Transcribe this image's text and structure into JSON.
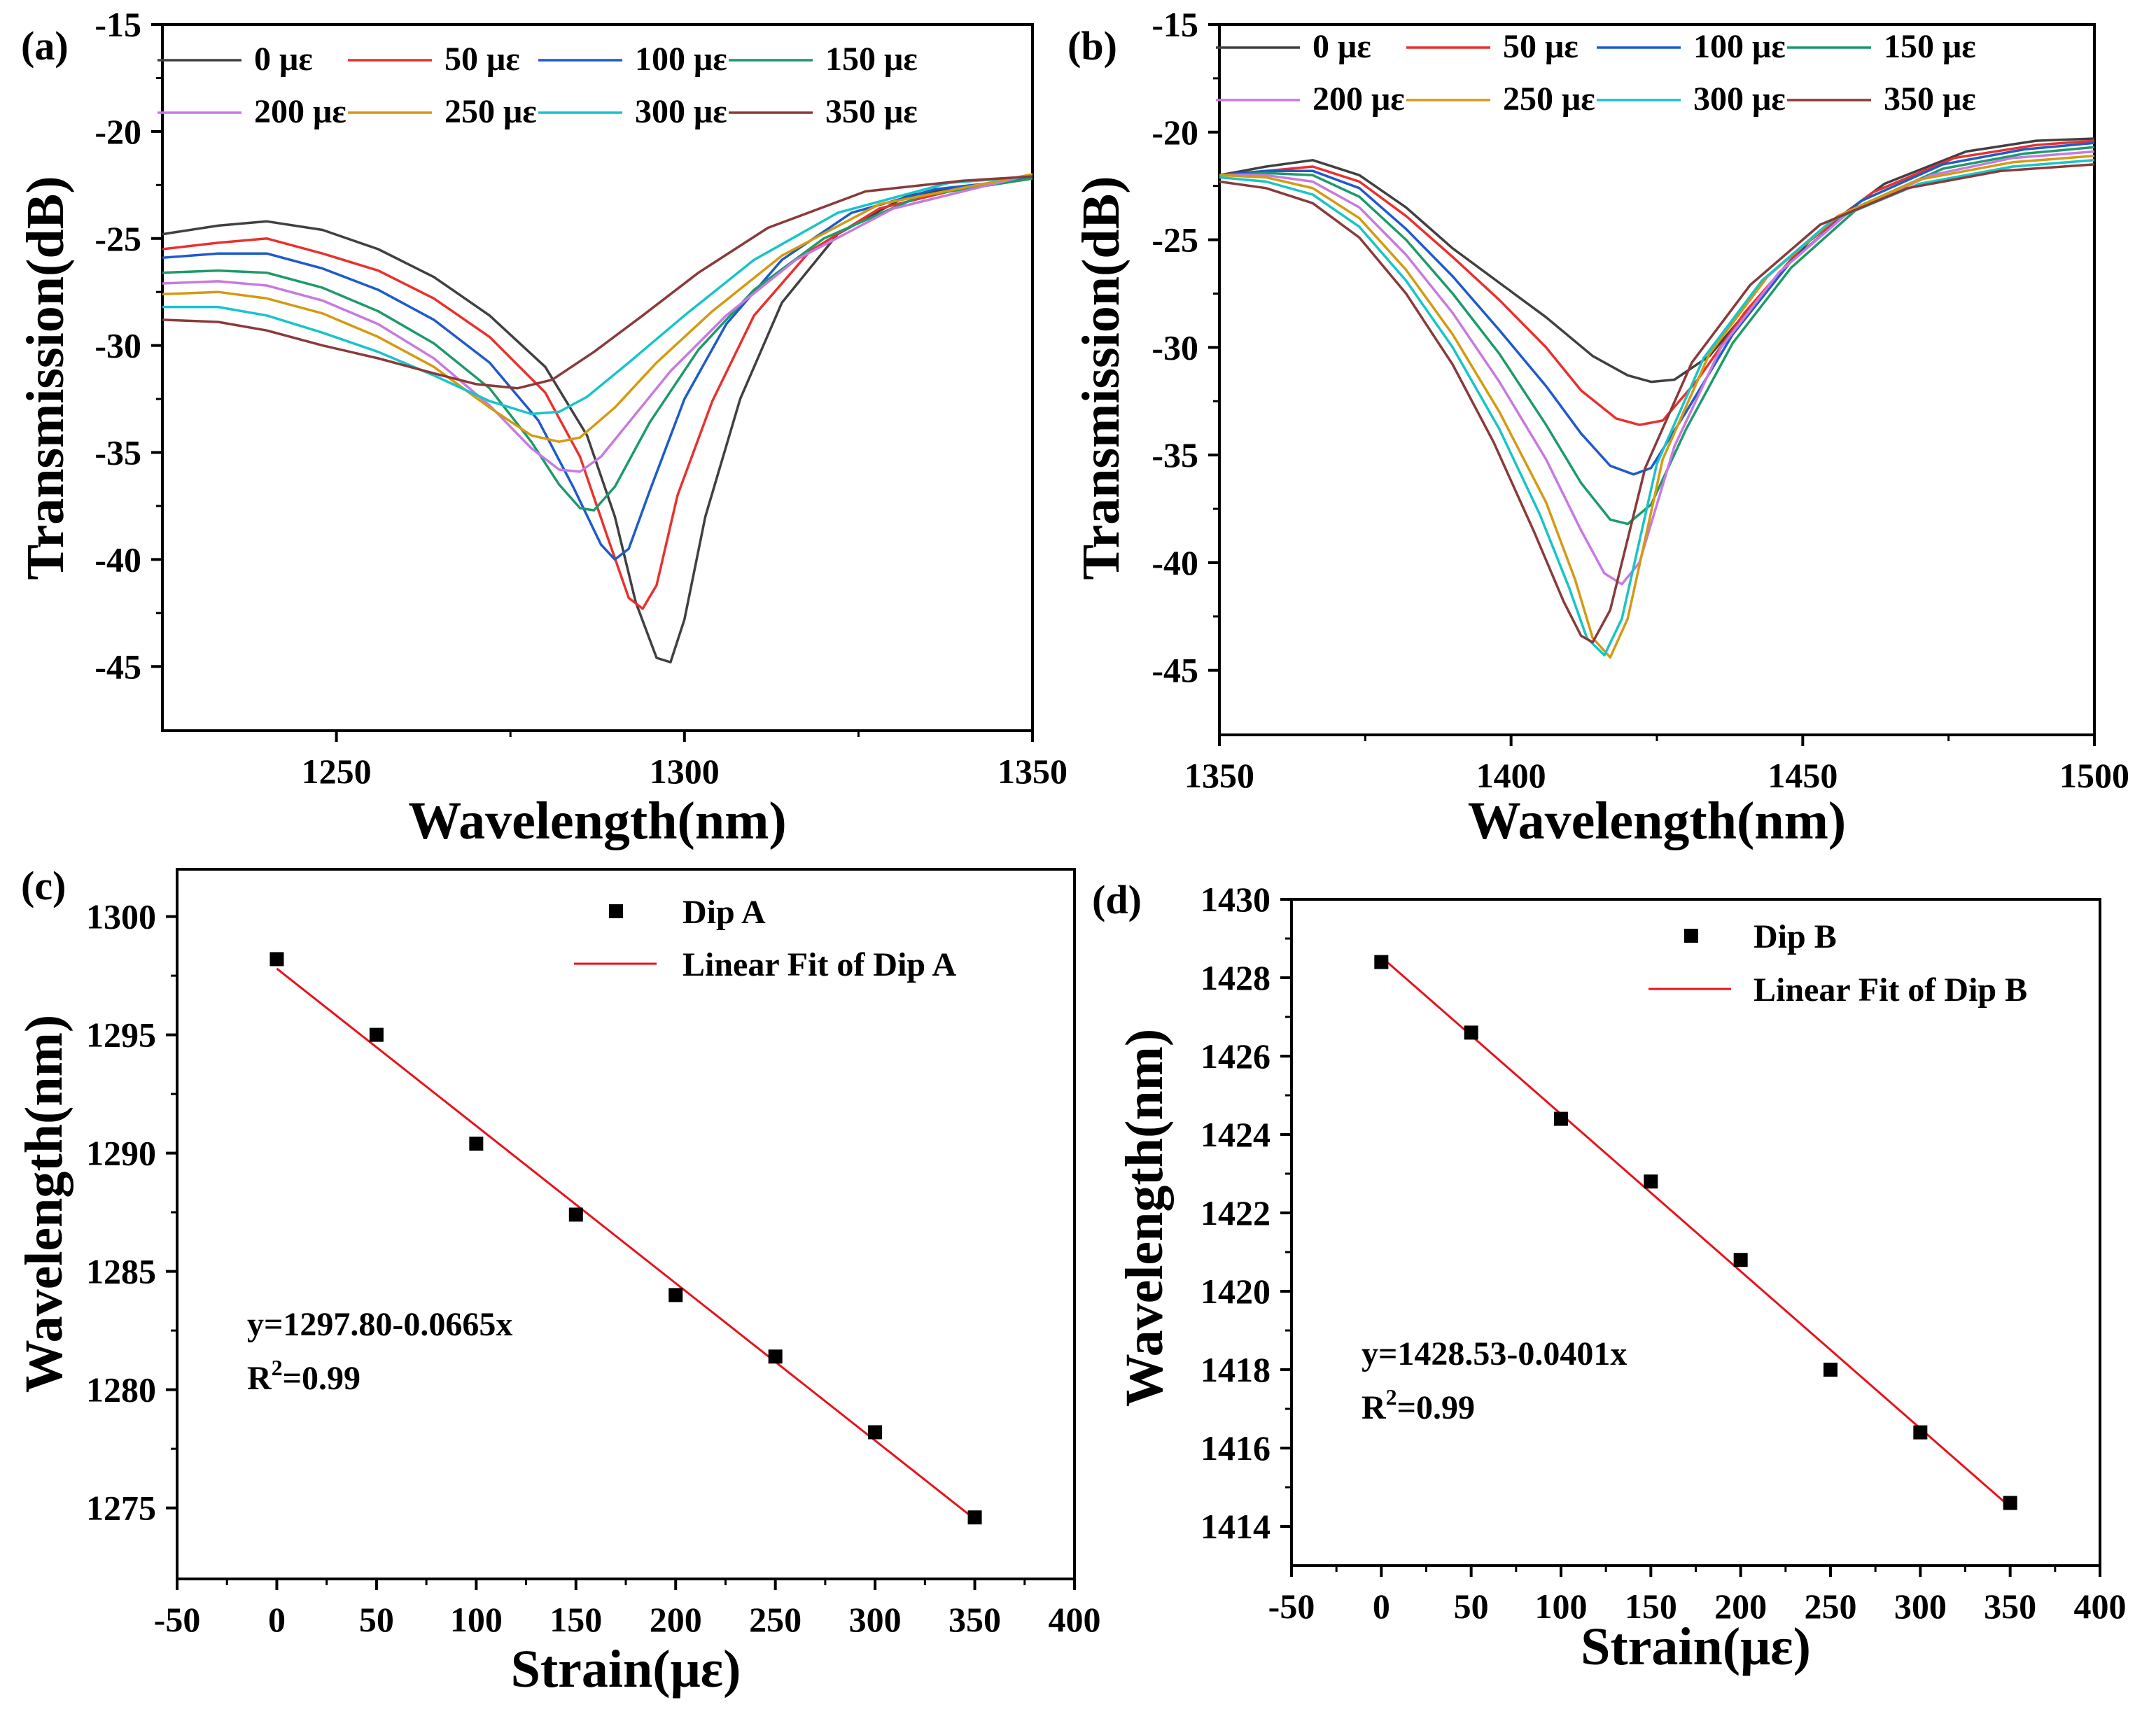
{
  "chart_data": [
    {
      "panel": "(a)",
      "type": "line",
      "xlabel": "Wavelength(nm)",
      "ylabel": "Transmission(dB)",
      "xlim": [
        1225,
        1350
      ],
      "ylim": [
        -48,
        -15
      ],
      "xticks": [
        "1250",
        "1300",
        "1350"
      ],
      "yticks": [
        "-15",
        "-20",
        "-25",
        "-30",
        "-35",
        "-40",
        "-45"
      ],
      "legend": {
        "location": "top",
        "columns": 4
      },
      "series": [
        {
          "name": "0 με",
          "color": "#404040",
          "x": [
            1225,
            1233,
            1240,
            1248,
            1256,
            1264,
            1272,
            1280,
            1286,
            1290,
            1293,
            1296,
            1298,
            1300,
            1303,
            1308,
            1314,
            1322,
            1332,
            1342,
            1350
          ],
          "y": [
            -24.8,
            -24.4,
            -24.2,
            -24.6,
            -25.5,
            -26.8,
            -28.6,
            -31.0,
            -34.2,
            -38.0,
            -42.0,
            -44.6,
            -44.8,
            -42.8,
            -38.0,
            -32.5,
            -28.0,
            -24.8,
            -23.0,
            -22.5,
            -22.2
          ]
        },
        {
          "name": "50 με",
          "color": "#e8312e",
          "x": [
            1225,
            1233,
            1240,
            1248,
            1256,
            1264,
            1272,
            1280,
            1285,
            1289,
            1292,
            1294,
            1296,
            1299,
            1304,
            1310,
            1318,
            1328,
            1338,
            1350
          ],
          "y": [
            -25.5,
            -25.2,
            -25.0,
            -25.7,
            -26.5,
            -27.8,
            -29.6,
            -32.2,
            -35.2,
            -39.0,
            -41.8,
            -42.3,
            -41.2,
            -37.0,
            -32.6,
            -28.6,
            -25.6,
            -23.6,
            -22.8,
            -22.2
          ]
        },
        {
          "name": "100 με",
          "color": "#1f5bc9",
          "x": [
            1225,
            1233,
            1240,
            1248,
            1256,
            1264,
            1272,
            1279,
            1284,
            1288,
            1290,
            1292,
            1295,
            1300,
            1306,
            1314,
            1324,
            1336,
            1350
          ],
          "y": [
            -25.9,
            -25.7,
            -25.7,
            -26.4,
            -27.4,
            -28.8,
            -30.8,
            -33.5,
            -36.6,
            -39.3,
            -40.0,
            -39.5,
            -36.8,
            -32.5,
            -29.0,
            -26.0,
            -23.8,
            -22.7,
            -22.2
          ]
        },
        {
          "name": "150 με",
          "color": "#1e9a6a",
          "x": [
            1225,
            1233,
            1240,
            1248,
            1256,
            1264,
            1272,
            1278,
            1282,
            1285,
            1287,
            1290,
            1295,
            1302,
            1310,
            1320,
            1334,
            1350
          ],
          "y": [
            -26.6,
            -26.5,
            -26.6,
            -27.3,
            -28.4,
            -29.9,
            -32.0,
            -34.5,
            -36.5,
            -37.6,
            -37.7,
            -36.6,
            -33.6,
            -30.2,
            -27.4,
            -25.0,
            -23.0,
            -22.2
          ]
        },
        {
          "name": "200 με",
          "color": "#c77ae0",
          "x": [
            1225,
            1233,
            1240,
            1248,
            1256,
            1264,
            1272,
            1278,
            1282,
            1285,
            1288,
            1292,
            1298,
            1306,
            1316,
            1330,
            1350
          ],
          "y": [
            -27.1,
            -27.0,
            -27.2,
            -27.9,
            -29.0,
            -30.6,
            -32.8,
            -34.8,
            -35.8,
            -35.9,
            -35.2,
            -33.6,
            -31.2,
            -28.6,
            -26.0,
            -23.6,
            -22.0
          ]
        },
        {
          "name": "250 με",
          "color": "#d49a12",
          "x": [
            1225,
            1233,
            1240,
            1248,
            1256,
            1264,
            1272,
            1278,
            1282,
            1285,
            1290,
            1296,
            1304,
            1314,
            1328,
            1350
          ],
          "y": [
            -27.6,
            -27.5,
            -27.8,
            -28.5,
            -29.6,
            -31.0,
            -32.9,
            -34.2,
            -34.5,
            -34.3,
            -32.9,
            -30.8,
            -28.4,
            -25.8,
            -23.4,
            -22.0
          ]
        },
        {
          "name": "300 με",
          "color": "#18c4c9",
          "x": [
            1225,
            1233,
            1240,
            1248,
            1256,
            1264,
            1272,
            1278,
            1282,
            1286,
            1292,
            1300,
            1310,
            1322,
            1338,
            1350
          ],
          "y": [
            -28.2,
            -28.2,
            -28.6,
            -29.4,
            -30.3,
            -31.4,
            -32.6,
            -33.2,
            -33.1,
            -32.4,
            -30.8,
            -28.6,
            -26.0,
            -23.8,
            -22.4,
            -22.1
          ]
        },
        {
          "name": "350 με",
          "color": "#8a3a3a",
          "x": [
            1225,
            1233,
            1240,
            1248,
            1256,
            1264,
            1270,
            1276,
            1281,
            1287,
            1294,
            1302,
            1312,
            1326,
            1340,
            1350
          ],
          "y": [
            -28.8,
            -28.9,
            -29.3,
            -30.0,
            -30.6,
            -31.3,
            -31.8,
            -32.0,
            -31.6,
            -30.3,
            -28.6,
            -26.6,
            -24.5,
            -22.8,
            -22.3,
            -22.1
          ]
        }
      ]
    },
    {
      "panel": "(b)",
      "type": "line",
      "xlabel": "Wavelength(nm)",
      "ylabel": "Transmission(dB)",
      "xlim": [
        1350,
        1500
      ],
      "ylim": [
        -48,
        -15
      ],
      "xticks": [
        "1350",
        "1400",
        "1450",
        "1500"
      ],
      "yticks": [
        "-15",
        "-20",
        "-25",
        "-30",
        "-35",
        "-40",
        "-45"
      ],
      "legend": {
        "location": "top",
        "columns": 4
      },
      "series": [
        {
          "name": "0 με",
          "color": "#404040",
          "x": [
            1350,
            1358,
            1366,
            1374,
            1382,
            1390,
            1398,
            1406,
            1414,
            1420,
            1424,
            1428,
            1434,
            1442,
            1452,
            1464,
            1478,
            1490,
            1500
          ],
          "y": [
            -22.0,
            -21.6,
            -21.3,
            -22.0,
            -23.5,
            -25.4,
            -27.0,
            -28.6,
            -30.4,
            -31.3,
            -31.6,
            -31.5,
            -30.4,
            -27.8,
            -24.8,
            -22.4,
            -20.9,
            -20.4,
            -20.3
          ]
        },
        {
          "name": "50 με",
          "color": "#e8312e",
          "x": [
            1350,
            1358,
            1366,
            1374,
            1382,
            1390,
            1398,
            1406,
            1412,
            1418,
            1422,
            1426,
            1432,
            1440,
            1450,
            1462,
            1476,
            1490,
            1500
          ],
          "y": [
            -22.0,
            -21.8,
            -21.6,
            -22.3,
            -23.9,
            -25.8,
            -27.8,
            -30.0,
            -32.0,
            -33.3,
            -33.6,
            -33.4,
            -31.5,
            -28.4,
            -25.3,
            -22.8,
            -21.2,
            -20.6,
            -20.4
          ]
        },
        {
          "name": "100 με",
          "color": "#1f5bc9",
          "x": [
            1350,
            1358,
            1366,
            1374,
            1382,
            1390,
            1398,
            1406,
            1412,
            1417,
            1421,
            1424,
            1430,
            1438,
            1448,
            1460,
            1474,
            1488,
            1500
          ],
          "y": [
            -22.0,
            -21.8,
            -21.8,
            -22.6,
            -24.5,
            -26.7,
            -29.2,
            -31.8,
            -34.0,
            -35.5,
            -35.9,
            -35.6,
            -33.0,
            -29.4,
            -26.0,
            -23.2,
            -21.5,
            -20.8,
            -20.5
          ]
        },
        {
          "name": "150 με",
          "color": "#1e9a6a",
          "x": [
            1350,
            1358,
            1366,
            1374,
            1382,
            1390,
            1398,
            1406,
            1412,
            1417,
            1420,
            1424,
            1430,
            1438,
            1448,
            1460,
            1474,
            1488,
            1500
          ],
          "y": [
            -22.0,
            -21.9,
            -22.0,
            -23.0,
            -25.0,
            -27.5,
            -30.3,
            -33.6,
            -36.3,
            -38.0,
            -38.2,
            -37.3,
            -33.8,
            -29.8,
            -26.3,
            -23.4,
            -21.7,
            -21.0,
            -20.7
          ]
        },
        {
          "name": "200 με",
          "color": "#c77ae0",
          "x": [
            1350,
            1358,
            1366,
            1374,
            1382,
            1390,
            1398,
            1406,
            1412,
            1416,
            1419,
            1422,
            1428,
            1436,
            1446,
            1458,
            1472,
            1486,
            1500
          ],
          "y": [
            -22.0,
            -22.0,
            -22.3,
            -23.5,
            -25.7,
            -28.4,
            -31.6,
            -35.2,
            -38.5,
            -40.5,
            -41.0,
            -40.0,
            -34.6,
            -30.0,
            -26.5,
            -23.7,
            -22.0,
            -21.2,
            -20.9
          ]
        },
        {
          "name": "250 με",
          "color": "#d49a12",
          "x": [
            1350,
            1358,
            1366,
            1374,
            1382,
            1390,
            1398,
            1406,
            1411,
            1414,
            1417,
            1420,
            1426,
            1434,
            1444,
            1456,
            1470,
            1486,
            1500
          ],
          "y": [
            -22.0,
            -22.1,
            -22.6,
            -24.0,
            -26.4,
            -29.4,
            -33.0,
            -37.2,
            -40.8,
            -43.5,
            -44.4,
            -42.6,
            -35.2,
            -30.3,
            -26.7,
            -23.9,
            -22.2,
            -21.4,
            -21.1
          ]
        },
        {
          "name": "300 με",
          "color": "#18c4c9",
          "x": [
            1350,
            1358,
            1366,
            1374,
            1382,
            1390,
            1398,
            1405,
            1410,
            1413,
            1416,
            1419,
            1425,
            1433,
            1443,
            1455,
            1470,
            1486,
            1500
          ],
          "y": [
            -22.1,
            -22.3,
            -22.9,
            -24.4,
            -26.9,
            -30.0,
            -33.8,
            -37.8,
            -41.2,
            -43.5,
            -44.3,
            -42.6,
            -35.4,
            -30.5,
            -26.9,
            -24.1,
            -22.4,
            -21.6,
            -21.3
          ]
        },
        {
          "name": "350 με",
          "color": "#8a3a3a",
          "x": [
            1350,
            1358,
            1366,
            1374,
            1382,
            1390,
            1397,
            1404,
            1409,
            1412,
            1414,
            1417,
            1423,
            1431,
            1441,
            1453,
            1468,
            1484,
            1500
          ],
          "y": [
            -22.3,
            -22.6,
            -23.3,
            -24.9,
            -27.5,
            -30.8,
            -34.4,
            -38.6,
            -41.8,
            -43.4,
            -43.7,
            -42.2,
            -35.6,
            -30.7,
            -27.1,
            -24.3,
            -22.6,
            -21.8,
            -21.5
          ]
        }
      ]
    },
    {
      "panel": "(c)",
      "type": "scatter",
      "xlabel": "Strain(με)",
      "ylabel": "Wavelength(nm)",
      "xlim": [
        -50,
        400
      ],
      "ylim": [
        1272,
        1302
      ],
      "xticks": [
        "-50",
        "0",
        "50",
        "100",
        "150",
        "200",
        "250",
        "300",
        "350",
        "400"
      ],
      "yticks": [
        "1275",
        "1280",
        "1285",
        "1290",
        "1295",
        "1300"
      ],
      "legend": {
        "location": "top-right",
        "entries": [
          "Dip A",
          "Linear Fit of Dip A"
        ]
      },
      "points": {
        "name": "Dip A",
        "x": [
          0,
          50,
          100,
          150,
          200,
          250,
          300,
          350
        ],
        "y": [
          1298.2,
          1295.0,
          1290.4,
          1287.4,
          1284.0,
          1281.4,
          1278.2,
          1274.6
        ]
      },
      "fit": {
        "name": "Linear Fit of Dip A",
        "intercept": 1297.8,
        "slope": -0.0665,
        "x": [
          0,
          350
        ],
        "color": "#e8121b"
      },
      "annotation": {
        "equation": "y=1297.80-0.0665x",
        "r2_prefix": "R",
        "r2_sup": "2",
        "r2_suffix": "=0.99"
      }
    },
    {
      "panel": "(d)",
      "type": "scatter",
      "xlabel": "Strain(με)",
      "ylabel": "Wavelength(nm)",
      "xlim": [
        -50,
        400
      ],
      "ylim": [
        1413,
        1430
      ],
      "xticks": [
        "-50",
        "0",
        "50",
        "100",
        "150",
        "200",
        "250",
        "300",
        "350",
        "400"
      ],
      "yticks": [
        "1414",
        "1416",
        "1418",
        "1420",
        "1422",
        "1424",
        "1426",
        "1428",
        "1430"
      ],
      "legend": {
        "location": "top-right",
        "entries": [
          "Dip B",
          "Linear Fit of Dip B"
        ]
      },
      "points": {
        "name": "Dip B",
        "x": [
          0,
          50,
          100,
          150,
          200,
          250,
          300,
          350
        ],
        "y": [
          1428.4,
          1426.6,
          1424.4,
          1422.8,
          1420.8,
          1418.0,
          1416.4,
          1414.6
        ]
      },
      "fit": {
        "name": "Linear Fit of Dip B",
        "intercept": 1428.53,
        "slope": -0.0401,
        "x": [
          0,
          350
        ],
        "color": "#e8121b"
      },
      "annotation": {
        "equation": "y=1428.53-0.0401x",
        "r2_prefix": "R",
        "r2_sup": "2",
        "r2_suffix": "=0.99"
      }
    }
  ]
}
